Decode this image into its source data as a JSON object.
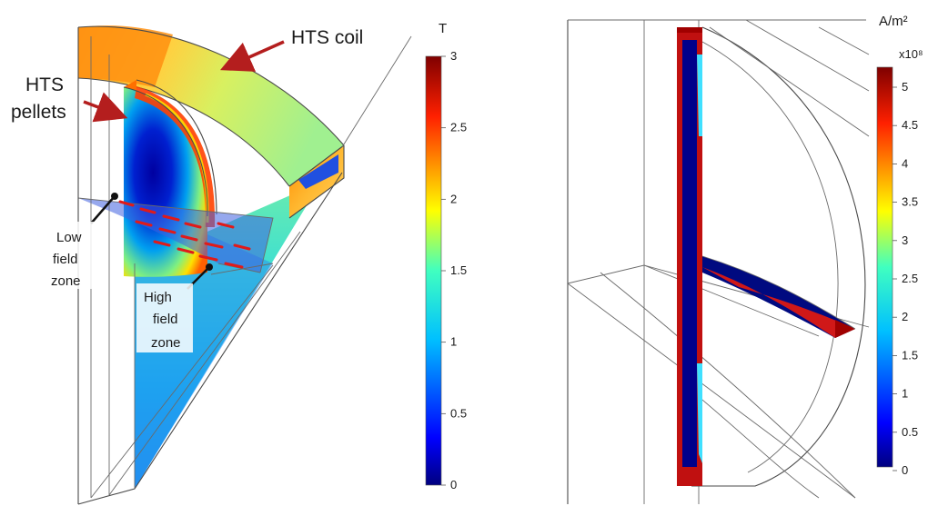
{
  "left_panel": {
    "labels": {
      "coil": "HTS coil",
      "pellets_line1": "HTS",
      "pellets_line2": "pellets",
      "low_zone": [
        "Low",
        "field",
        "zone"
      ],
      "high_zone": [
        "High",
        "field",
        "zone"
      ]
    },
    "colorbar": {
      "unit": "T",
      "ticks": [
        "3",
        "2.5",
        "2",
        "1.5",
        "1",
        "0.5",
        "0"
      ],
      "min": 0,
      "max": 3
    }
  },
  "right_panel": {
    "colorbar": {
      "unit": "A/m²",
      "multiplier": "x10⁸",
      "ticks": [
        "5",
        "4.5",
        "4",
        "3.5",
        "3",
        "2.5",
        "2",
        "1.5",
        "1",
        "0.5",
        "0"
      ],
      "min": 0,
      "max": 5
    }
  },
  "colors": {
    "arrow": "#b41e1e",
    "colormap": [
      "#00007f",
      "#0000ff",
      "#0080ff",
      "#00ffff",
      "#80ff80",
      "#ffff00",
      "#ff8000",
      "#ff0000",
      "#7f0000"
    ]
  }
}
